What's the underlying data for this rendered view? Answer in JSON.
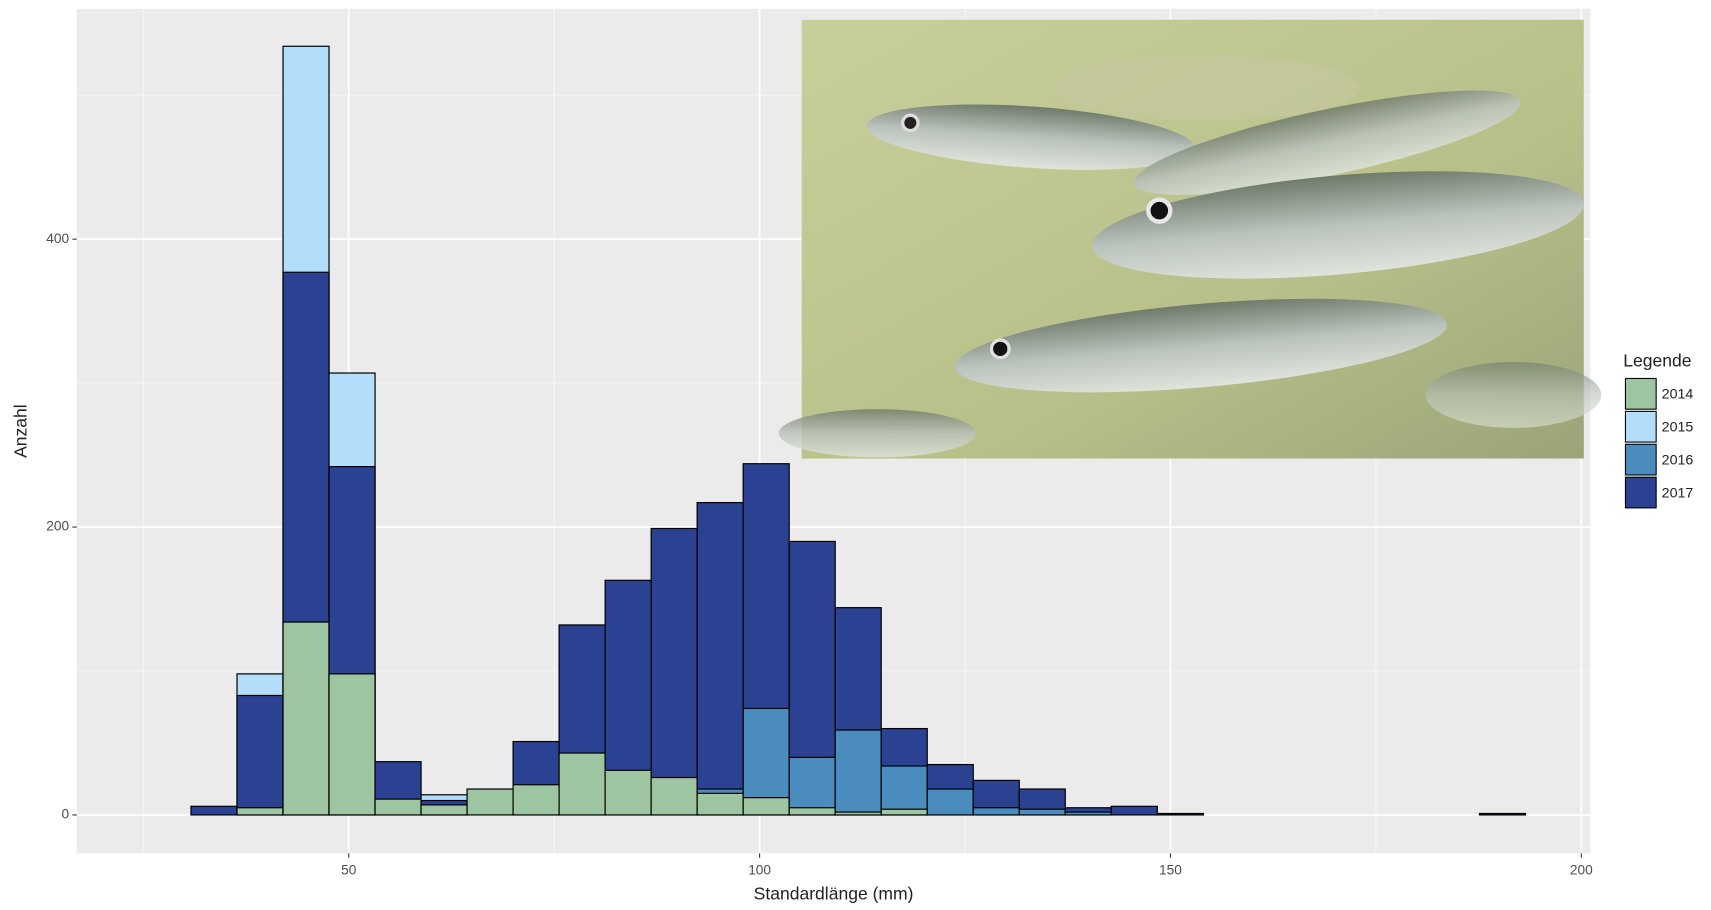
{
  "chart_data": {
    "type": "histogram",
    "x_label": "Standardlänge (mm)",
    "y_label": "Anzahl",
    "legend_title": "Legende",
    "legend_position": "right",
    "grid": true,
    "bins": [
      25.2,
      30.8,
      36.4,
      42.0,
      47.6,
      53.2,
      58.8,
      64.4,
      70.0,
      75.6,
      81.2,
      86.8,
      92.4,
      98.0,
      103.6,
      109.2,
      114.8,
      120.4,
      126.0,
      131.6,
      137.2,
      142.8,
      148.4,
      154.0,
      159.6,
      165.2,
      170.8,
      176.4,
      182.0,
      187.6,
      193.2
    ],
    "series": [
      {
        "name": "2014",
        "color": "#9dc5a1",
        "values": [
          0,
          0,
          5,
          134,
          98,
          11,
          7,
          18,
          21,
          43,
          31,
          26,
          15,
          12,
          5,
          2,
          4,
          0,
          0,
          0,
          0,
          0,
          0,
          0,
          0,
          0,
          0,
          0,
          0,
          0
        ]
      },
      {
        "name": "2015",
        "color": "#b2ddfb",
        "values": [
          0,
          0,
          98,
          534,
          307,
          0,
          14,
          0,
          0,
          0,
          0,
          0,
          0,
          0,
          0,
          0,
          0,
          0,
          0,
          0,
          0,
          0,
          0,
          0,
          0,
          0,
          0,
          0,
          0,
          0
        ]
      },
      {
        "name": "2016",
        "color": "#4a8cbe",
        "values": [
          0,
          0,
          0,
          0,
          0,
          0,
          0,
          0,
          0,
          0,
          0,
          0,
          18,
          74,
          40,
          59,
          34,
          18,
          5,
          4,
          2,
          0,
          0,
          0,
          0,
          0,
          0,
          0,
          0,
          0
        ]
      },
      {
        "name": "2017",
        "color": "#2b4191",
        "values": [
          0,
          6,
          83,
          377,
          242,
          37,
          10,
          0,
          51,
          132,
          163,
          199,
          217,
          244,
          190,
          144,
          60,
          35,
          24,
          18,
          5,
          6,
          1,
          0,
          0,
          0,
          0,
          0,
          0,
          1
        ]
      }
    ],
    "xlim": [
      16.9,
      201.1
    ],
    "ylim": [
      -26.7,
      560
    ],
    "xticks": [
      50,
      100,
      150,
      200
    ],
    "yticks": [
      0,
      200,
      400
    ]
  }
}
